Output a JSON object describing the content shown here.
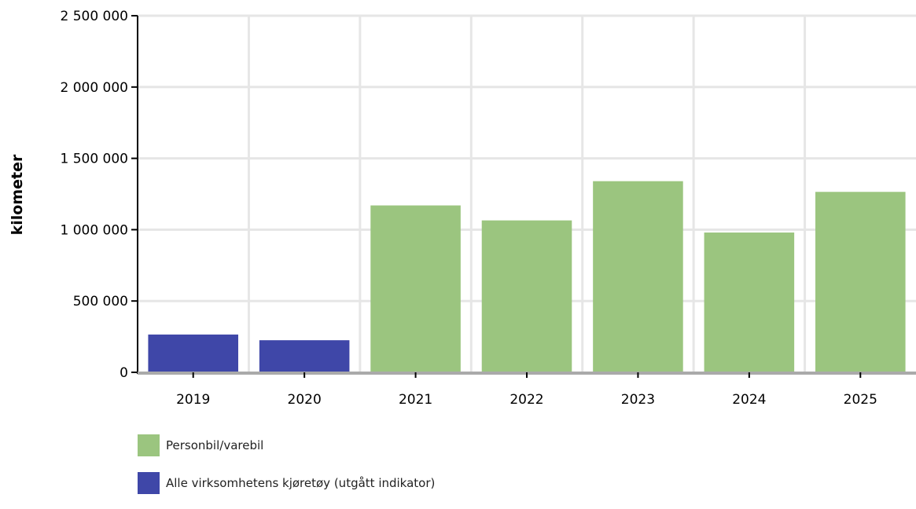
{
  "chart_data": {
    "type": "bar",
    "categories": [
      "2019",
      "2020",
      "2021",
      "2022",
      "2023",
      "2024",
      "2025"
    ],
    "series": [
      {
        "name": "Personbil/varebil",
        "color": "#9bc57f",
        "values": [
          null,
          null,
          1170000,
          1065000,
          1340000,
          980000,
          1265000
        ]
      },
      {
        "name": "Alle virksomhetens kjøretøy (utgått indikator)",
        "color": "#3f47a8",
        "values": [
          265000,
          225000,
          null,
          null,
          null,
          null,
          null
        ]
      }
    ],
    "title": "",
    "xlabel": "",
    "ylabel": "kilometer",
    "ylim": [
      0,
      2500000
    ],
    "yticks": [
      0,
      500000,
      1000000,
      1500000,
      2000000,
      2500000
    ],
    "ytick_labels": [
      "0",
      "500 000",
      "1 000 000",
      "1 500 000",
      "2 000 000",
      "2 500 000"
    ],
    "grid": true,
    "legend_placement": "bottom-left"
  }
}
